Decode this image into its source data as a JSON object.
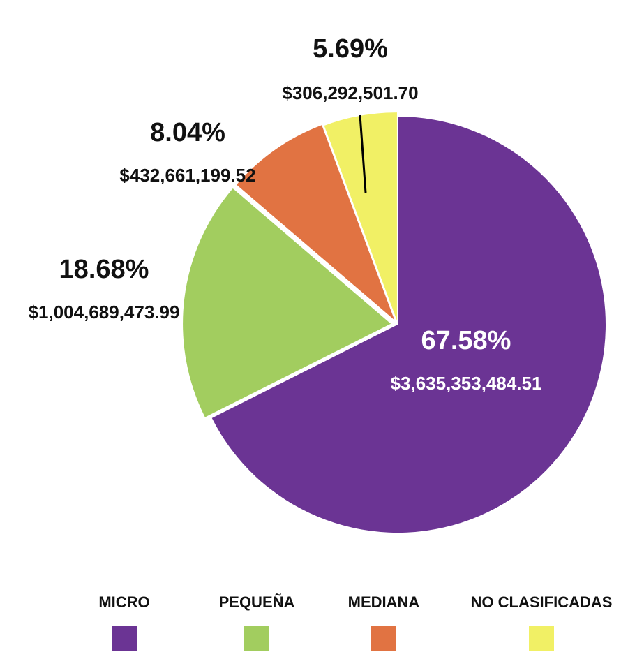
{
  "chart_data": {
    "type": "pie",
    "categories": [
      "MICRO",
      "PEQUEÑA",
      "MEDIANA",
      "NO CLASIFICADAS"
    ],
    "values": [
      67.58,
      18.68,
      8.04,
      5.69
    ],
    "amounts": [
      "$3,635,353,484.51",
      "$1,004,689,473.99",
      "$432,661,199.52",
      "$306,292,501.70"
    ],
    "percent_labels": [
      "67.58%",
      "18.68%",
      "8.04%",
      "5.69%"
    ],
    "colors": [
      "#6b3494",
      "#a2cd5f",
      "#e17342",
      "#f1f065"
    ],
    "legend_position": "bottom",
    "start_angle": "12 o'clock, clockwise",
    "exploded": [
      "PEQUEÑA",
      "MEDIANA",
      "NO CLASIFICADAS"
    ]
  }
}
